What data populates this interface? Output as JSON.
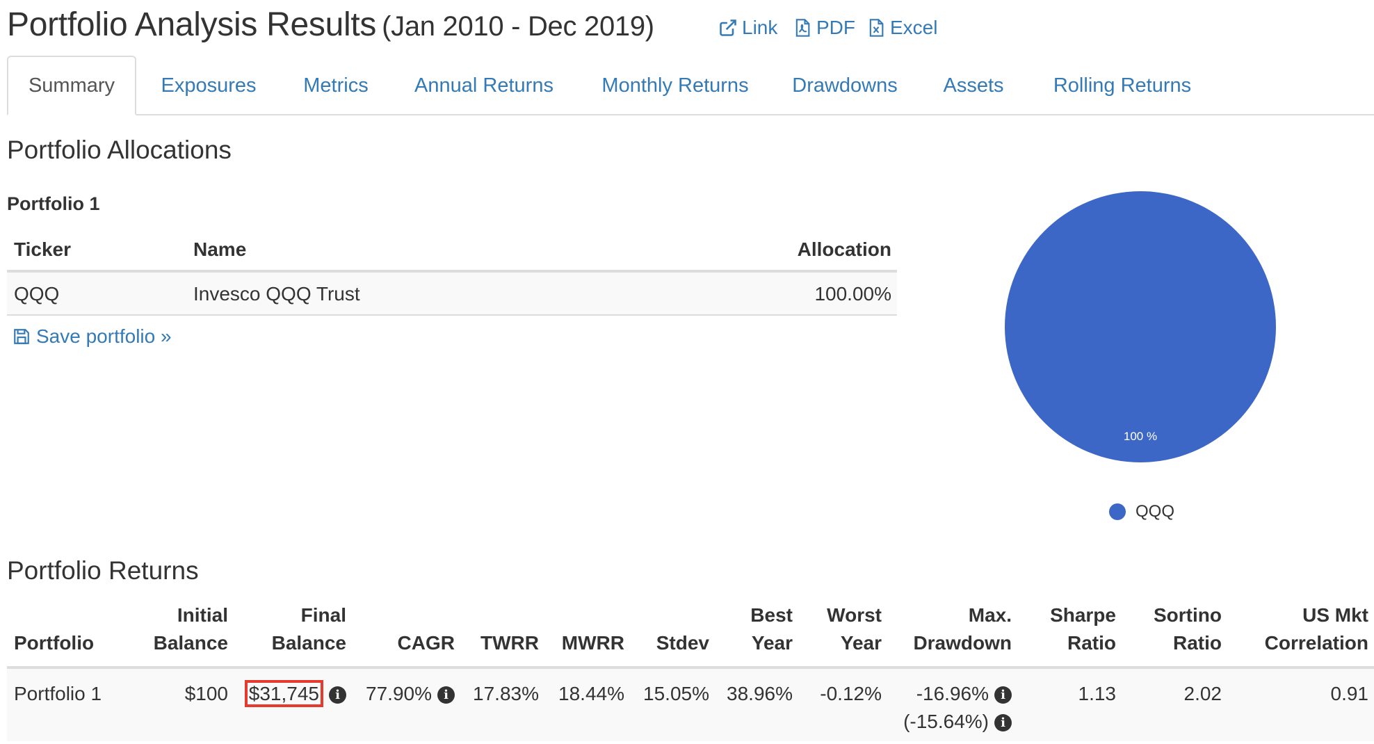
{
  "header": {
    "title": "Portfolio Analysis Results",
    "subtitle": "(Jan 2010 - Dec 2019)",
    "links": {
      "link": "Link",
      "pdf": "PDF",
      "excel": "Excel"
    },
    "link_color": "#337ab7"
  },
  "tabs": [
    {
      "label": "Summary",
      "active": true
    },
    {
      "label": "Exposures"
    },
    {
      "label": "Metrics"
    },
    {
      "label": "Annual Returns"
    },
    {
      "label": "Monthly Returns"
    },
    {
      "label": "Drawdowns"
    },
    {
      "label": "Assets"
    },
    {
      "label": "Rolling Returns"
    }
  ],
  "allocations": {
    "heading": "Portfolio Allocations",
    "portfolio_name": "Portfolio 1",
    "columns": {
      "ticker": "Ticker",
      "name": "Name",
      "allocation": "Allocation"
    },
    "rows": [
      {
        "ticker": "QQQ",
        "name": "Invesco QQQ Trust",
        "allocation": "100.00%"
      }
    ],
    "save_link": "Save portfolio »"
  },
  "chart_data": {
    "type": "pie",
    "slices": [
      {
        "label": "QQQ",
        "value": 100,
        "display": "100 %",
        "color": "#3d67c6"
      }
    ],
    "legend": [
      "QQQ"
    ],
    "legend_position": "bottom"
  },
  "returns": {
    "heading": "Portfolio Returns",
    "columns": {
      "portfolio": "Portfolio",
      "initial_1": "Initial",
      "initial_2": "Balance",
      "final_1": "Final",
      "final_2": "Balance",
      "cagr": "CAGR",
      "twrr": "TWRR",
      "mwrr": "MWRR",
      "stdev": "Stdev",
      "best_1": "Best",
      "best_2": "Year",
      "worst_1": "Worst",
      "worst_2": "Year",
      "maxdd_1": "Max.",
      "maxdd_2": "Drawdown",
      "sharpe_1": "Sharpe",
      "sharpe_2": "Ratio",
      "sortino_1": "Sortino",
      "sortino_2": "Ratio",
      "corr_1": "US Mkt",
      "corr_2": "Correlation"
    },
    "row": {
      "portfolio": "Portfolio 1",
      "initial_balance": "$100",
      "final_balance": "$31,745",
      "cagr": "77.90%",
      "twrr": "17.83%",
      "mwrr": "18.44%",
      "stdev": "15.05%",
      "best_year": "38.96%",
      "worst_year": "-0.12%",
      "max_drawdown": "-16.96%",
      "max_drawdown_alt": "(-15.64%)",
      "sharpe": "1.13",
      "sortino": "2.02",
      "us_mkt_correlation": "0.91"
    },
    "highlight_color": "#e53a2e"
  }
}
